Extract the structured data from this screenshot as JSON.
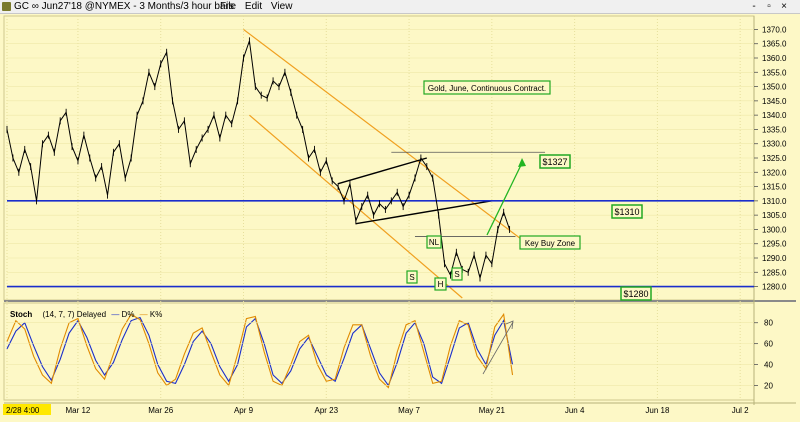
{
  "window": {
    "title": "GC ∞ Jun27'18 @NYMEX - 3 Months/3 hour bars",
    "menu": [
      "File",
      "Edit",
      "View"
    ],
    "controls": [
      "-",
      "▫",
      "×"
    ]
  },
  "annotations": {
    "contract_label": "Gold, June, Continuous Contract.",
    "target_label": "$1327",
    "resistance_label": "$1310",
    "support_label": "$1280",
    "buy_zone_label": "Key Buy Zone",
    "neckline_label": "NL",
    "left_shoulder": "S",
    "head": "H",
    "right_shoulder": "S"
  },
  "stoch_panel": {
    "name": "Stoch",
    "params": "(14, 7, 7)",
    "mode": "Delayed",
    "d_label": "D%",
    "k_label": "K%"
  },
  "chart_data": [
    {
      "type": "line",
      "panel": "price",
      "ylabel": "",
      "ylim": [
        1276,
        1374
      ],
      "y_ticks": [
        1280,
        1285,
        1290,
        1295,
        1300,
        1305,
        1310,
        1315,
        1320,
        1325,
        1330,
        1335,
        1340,
        1345,
        1350,
        1355,
        1360,
        1365,
        1370
      ],
      "x_ticks": [
        "2/28 4:00",
        "Mar 12",
        "Mar 26",
        "Apr 9",
        "Apr 23",
        "May 7",
        "May 21",
        "Jun 4",
        "Jun 18",
        "Jul 2"
      ],
      "x_tick_days": [
        0,
        12,
        26,
        40,
        54,
        68,
        82,
        96,
        110,
        124
      ],
      "xlim": [
        0,
        126
      ],
      "series": [
        {
          "x": [
            0,
            1,
            2,
            3,
            4,
            5,
            6,
            7,
            8,
            9,
            10,
            11,
            12,
            13,
            14,
            15,
            16,
            17,
            18,
            19,
            20,
            21,
            22,
            23,
            24,
            25,
            26,
            27,
            28,
            29,
            30,
            31,
            32,
            33,
            34,
            35,
            36,
            37,
            38,
            39,
            40,
            41,
            42,
            43,
            44,
            45,
            46,
            47,
            48,
            49,
            50,
            51,
            52,
            53,
            54,
            55,
            56,
            57,
            58,
            59,
            60,
            61,
            62,
            63,
            64,
            65,
            66,
            67,
            68,
            69,
            70,
            71,
            72,
            73,
            74,
            75,
            76,
            77,
            78,
            79,
            80,
            81,
            82,
            83,
            84,
            85
          ],
          "values": [
            1335,
            1325,
            1320,
            1328,
            1322,
            1310,
            1330,
            1333,
            1327,
            1338,
            1341,
            1329,
            1324,
            1333,
            1325,
            1318,
            1322,
            1312,
            1327,
            1330,
            1318,
            1325,
            1340,
            1345,
            1355,
            1350,
            1358,
            1362,
            1345,
            1335,
            1338,
            1323,
            1328,
            1332,
            1335,
            1340,
            1332,
            1340,
            1337,
            1345,
            1360,
            1366,
            1350,
            1347,
            1346,
            1352,
            1350,
            1355,
            1348,
            1340,
            1335,
            1325,
            1328,
            1320,
            1324,
            1317,
            1315,
            1310,
            1316,
            1303,
            1308,
            1312,
            1305,
            1309,
            1307,
            1310,
            1313,
            1308,
            1312,
            1318,
            1325,
            1322,
            1318,
            1305,
            1288,
            1284,
            1292,
            1286,
            1285,
            1291,
            1283,
            1291,
            1288,
            1300,
            1306,
            1300
          ]
        }
      ],
      "horizontal_lines": [
        1310,
        1280
      ],
      "reference_levels": [
        1327,
        1297.5
      ]
    },
    {
      "type": "line",
      "panel": "stochastic",
      "ylim": [
        8,
        96
      ],
      "y_ticks": [
        20,
        40,
        60,
        80
      ],
      "series": [
        {
          "name": "D%",
          "color": "#1a2ecc",
          "x": [
            0,
            1.5,
            3,
            4.5,
            6,
            7.5,
            9,
            10.5,
            12,
            13.5,
            15,
            16.5,
            18,
            19.5,
            21,
            22.5,
            24,
            25.5,
            27,
            28.5,
            30,
            31.5,
            33,
            34.5,
            36,
            37.5,
            39,
            40.5,
            42,
            43.5,
            45,
            46.5,
            48,
            49.5,
            51,
            52.5,
            54,
            55.5,
            57,
            58.5,
            60,
            61.5,
            63,
            64.5,
            66,
            67.5,
            69,
            70.5,
            72,
            73.5,
            75,
            76.5,
            78,
            79.5,
            81,
            82.5,
            84,
            85.5
          ],
          "values": [
            55,
            72,
            80,
            58,
            38,
            25,
            45,
            70,
            82,
            66,
            44,
            30,
            42,
            64,
            82,
            85,
            68,
            40,
            24,
            22,
            40,
            62,
            72,
            60,
            38,
            24,
            40,
            76,
            84,
            60,
            30,
            22,
            34,
            55,
            66,
            48,
            30,
            24,
            46,
            70,
            78,
            55,
            32,
            20,
            42,
            70,
            80,
            60,
            28,
            22,
            48,
            75,
            80,
            55,
            40,
            68,
            82,
            40
          ]
        },
        {
          "name": "K%",
          "color": "#e08a00",
          "x": [
            0,
            1.5,
            3,
            4.5,
            6,
            7.5,
            9,
            10.5,
            12,
            13.5,
            15,
            16.5,
            18,
            19.5,
            21,
            22.5,
            24,
            25.5,
            27,
            28.5,
            30,
            31.5,
            33,
            34.5,
            36,
            37.5,
            39,
            40.5,
            42,
            43.5,
            45,
            46.5,
            48,
            49.5,
            51,
            52.5,
            54,
            55.5,
            57,
            58.5,
            60,
            61.5,
            63,
            64.5,
            66,
            67.5,
            69,
            70.5,
            72,
            73.5,
            75,
            76.5,
            78,
            79.5,
            81,
            82.5,
            84,
            85.5
          ],
          "values": [
            62,
            82,
            74,
            48,
            30,
            22,
            55,
            80,
            84,
            58,
            36,
            26,
            50,
            74,
            88,
            83,
            60,
            32,
            20,
            26,
            50,
            70,
            75,
            52,
            30,
            20,
            50,
            84,
            86,
            52,
            24,
            20,
            40,
            62,
            68,
            40,
            24,
            26,
            56,
            78,
            78,
            48,
            26,
            18,
            52,
            78,
            82,
            52,
            22,
            24,
            58,
            82,
            78,
            48,
            36,
            76,
            88,
            30
          ]
        }
      ]
    }
  ]
}
